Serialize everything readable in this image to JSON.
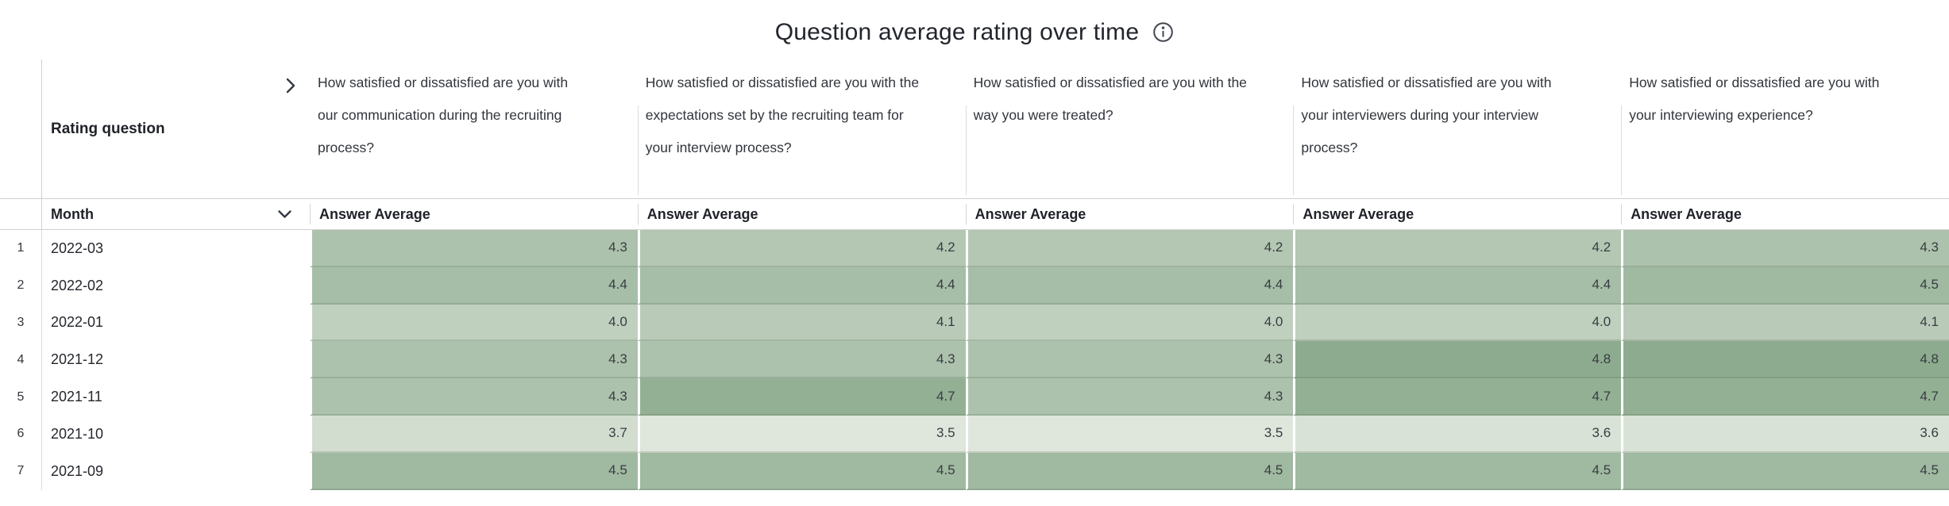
{
  "title": {
    "text": "Question average rating over time",
    "info_icon": "info-circle-icon"
  },
  "heatmap": {
    "light_color": "#dfe6dc",
    "dark_color": "#8dac8f",
    "min_value": 3.5,
    "max_value": 4.8
  },
  "table": {
    "row_dimension_label": "Rating question",
    "expand_icon": "chevron-right-icon",
    "questions": [
      "How satisfied or dissatisfied are you with our communication during the recruiting process?",
      "How satisfied or dissatisfied are you with the expectations set by the recruiting team for your interview process?",
      "How satisfied or dissatisfied are you with the way you were treated?",
      "How satisfied or dissatisfied are you with your interviewers during your interview process?",
      "How satisfied or dissatisfied are you with your interviewing experience?"
    ],
    "sub_header": {
      "month_label": "Month",
      "sort_icon": "chevron-down-icon",
      "value_label": "Answer Average"
    },
    "rows": [
      {
        "num": "1",
        "month": "2022-03",
        "values": [
          "4.3",
          "4.2",
          "4.2",
          "4.2",
          "4.3"
        ]
      },
      {
        "num": "2",
        "month": "2022-02",
        "values": [
          "4.4",
          "4.4",
          "4.4",
          "4.4",
          "4.5"
        ]
      },
      {
        "num": "3",
        "month": "2022-01",
        "values": [
          "4.0",
          "4.1",
          "4.0",
          "4.0",
          "4.1"
        ]
      },
      {
        "num": "4",
        "month": "2021-12",
        "values": [
          "4.3",
          "4.3",
          "4.3",
          "4.8",
          "4.8"
        ]
      },
      {
        "num": "5",
        "month": "2021-11",
        "values": [
          "4.3",
          "4.7",
          "4.3",
          "4.7",
          "4.7"
        ]
      },
      {
        "num": "6",
        "month": "2021-10",
        "values": [
          "3.7",
          "3.5",
          "3.5",
          "3.6",
          "3.6"
        ]
      },
      {
        "num": "7",
        "month": "2021-09",
        "values": [
          "4.5",
          "4.5",
          "4.5",
          "4.5",
          "4.5"
        ]
      }
    ]
  },
  "chart_data": {
    "type": "heatmap",
    "title": "Question average rating over time",
    "columns_label": "Rating question",
    "rows_label": "Month",
    "value_label": "Answer Average",
    "columns": [
      "How satisfied or dissatisfied are you with our communication during the recruiting process?",
      "How satisfied or dissatisfied are you with the expectations set by the recruiting team for your interview process?",
      "How satisfied or dissatisfied are you with the way you were treated?",
      "How satisfied or dissatisfied are you with your interviewers during your interview process?",
      "How satisfied or dissatisfied are you with your interviewing experience?"
    ],
    "row_categories": [
      "2022-03",
      "2022-02",
      "2022-01",
      "2021-12",
      "2021-11",
      "2021-10",
      "2021-09"
    ],
    "values": [
      [
        4.3,
        4.2,
        4.2,
        4.2,
        4.3
      ],
      [
        4.4,
        4.4,
        4.4,
        4.4,
        4.5
      ],
      [
        4.0,
        4.1,
        4.0,
        4.0,
        4.1
      ],
      [
        4.3,
        4.3,
        4.3,
        4.8,
        4.8
      ],
      [
        4.3,
        4.7,
        4.3,
        4.7,
        4.7
      ],
      [
        3.7,
        3.5,
        3.5,
        3.6,
        3.6
      ],
      [
        4.5,
        4.5,
        4.5,
        4.5,
        4.5
      ]
    ],
    "color_scale": {
      "low": "#dfe6dc",
      "high": "#8dac8f",
      "domain": [
        3.5,
        4.8
      ]
    }
  }
}
